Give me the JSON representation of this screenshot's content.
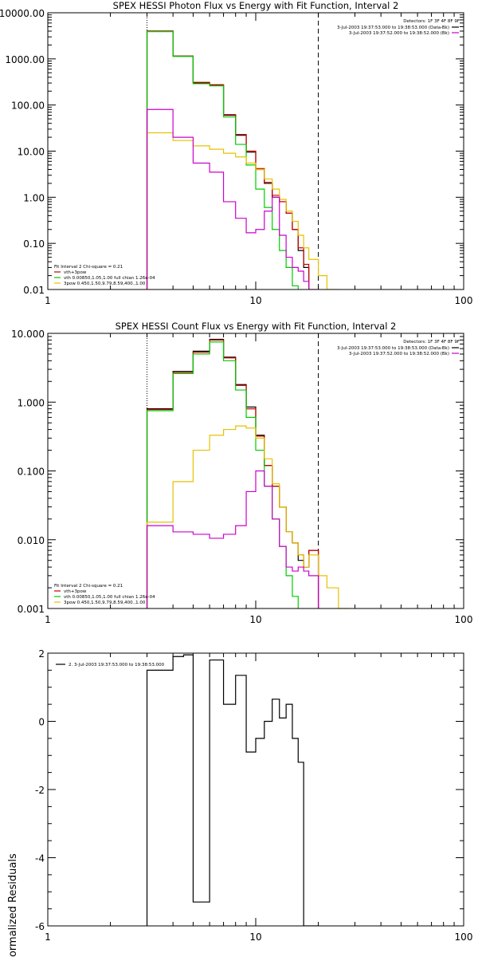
{
  "chart_data": [
    {
      "type": "line",
      "step": true,
      "title": "SPEX HESSI Photon Flux vs Energy with Fit Function, Interval 2",
      "x_scale": "log",
      "y_scale": "log",
      "xlim": [
        1,
        100
      ],
      "ylim": [
        0.01,
        10000
      ],
      "x_tick_labels": [
        "1",
        "10",
        "100"
      ],
      "y_tick_labels": [
        "0.01",
        "0.10",
        "1.00",
        "10.00",
        "100.00",
        "1000.00",
        "10000.00"
      ],
      "detectors_label": "Detectors: 1F 3F 4F 8F 9F",
      "legend_top_right": [
        {
          "text": "3-Jul-2003 19:37:53.000 to 19:38:53.000 (Data-Bk)",
          "color": "#000000"
        },
        {
          "text": "3-Jul-2003 19:37:52.000 to 19:38:52.000 (Bk)",
          "color": "#cc00cc"
        }
      ],
      "legend_bottom_left": [
        {
          "text": "Fit Interval 2   Chi-square = 0.21",
          "color": "#000000"
        },
        {
          "text": "vth+3pow",
          "color": "#cc0000"
        },
        {
          "text": "vth 0.00850,1.05,1.00  full chian 1.26e-04",
          "color": "#00cc00"
        },
        {
          "text": "3pow 0.450,1.50,9.79,8.59,400.,1.00",
          "color": "#e6c200"
        }
      ],
      "vlines": [
        {
          "x": 3.0,
          "style": "dotted"
        },
        {
          "x": 20.0,
          "style": "dashed"
        }
      ],
      "edges": [
        3,
        4,
        5,
        6,
        7,
        8,
        9,
        10,
        11,
        12,
        13,
        14,
        15,
        16,
        17,
        18,
        20,
        22,
        25,
        28
      ],
      "series": [
        {
          "name": "Data-Bk",
          "color": "#000000",
          "values": [
            4000,
            1150,
            300,
            270,
            60,
            22,
            9.5,
            4.0,
            2.0,
            1.0,
            0.8,
            0.45,
            0.2,
            0.07,
            0.03
          ]
        },
        {
          "name": "vth+3pow",
          "color": "#cc0000",
          "values": [
            4000,
            1150,
            310,
            275,
            62,
            23,
            10,
            4.2,
            2.1,
            1.1,
            0.8,
            0.45,
            0.2,
            0.08,
            0.035
          ]
        },
        {
          "name": "vth",
          "color": "#00cc00",
          "values": [
            3900,
            1130,
            290,
            260,
            55,
            14,
            5.0,
            1.5,
            0.6,
            0.2,
            0.07,
            0.03,
            0.012,
            0.005
          ]
        },
        {
          "name": "3pow",
          "color": "#e6c200",
          "values": [
            25,
            17,
            13,
            11,
            9,
            7.5,
            5.5,
            4.0,
            2.5,
            1.5,
            0.9,
            0.5,
            0.3,
            0.15,
            0.08,
            0.045,
            0.02,
            0.01,
            0.005
          ]
        },
        {
          "name": "Bk",
          "color": "#cc00cc",
          "values": [
            80,
            20,
            5.5,
            3.5,
            0.8,
            0.35,
            0.17,
            0.2,
            0.5,
            1.0,
            0.15,
            0.05,
            0.03,
            0.025,
            0.015,
            0.01
          ]
        }
      ]
    },
    {
      "type": "line",
      "step": true,
      "title": "SPEX HESSI Count Flux vs Energy with Fit Function, Interval 2",
      "x_scale": "log",
      "y_scale": "log",
      "xlim": [
        1,
        100
      ],
      "ylim": [
        0.001,
        10
      ],
      "x_tick_labels": [
        "1",
        "10",
        "100"
      ],
      "y_tick_labels": [
        "0.001",
        "0.010",
        "0.100",
        "1.000",
        "10.000"
      ],
      "detectors_label": "Detectors: 1F 3F 4F 8F 9F",
      "legend_top_right": [
        {
          "text": "3-Jul-2003 19:37:53.000 to 19:38:53.000 (Data-Bk)",
          "color": "#000000"
        },
        {
          "text": "3-Jul-2003 19:37:52.000 to 19:38:52.000 (Bk)",
          "color": "#cc00cc"
        }
      ],
      "legend_bottom_left": [
        {
          "text": "Fit Interval 2   Chi-square = 0.21",
          "color": "#000000"
        },
        {
          "text": "vth+3pow",
          "color": "#cc0000"
        },
        {
          "text": "vth 0.00850,1.05,1.00  full chian 1.26e-04",
          "color": "#00cc00"
        },
        {
          "text": "3pow 0.450,1.50,9.79,8.59,400.,1.00",
          "color": "#e6c200"
        }
      ],
      "vlines": [
        {
          "x": 3.0,
          "style": "dotted"
        },
        {
          "x": 20.0,
          "style": "dashed"
        }
      ],
      "edges": [
        3,
        4,
        5,
        6,
        7,
        8,
        9,
        10,
        11,
        12,
        13,
        14,
        15,
        16,
        17,
        18,
        20,
        22,
        25,
        28
      ],
      "series": [
        {
          "name": "Data-Bk",
          "color": "#000000",
          "values": [
            0.8,
            2.8,
            5.5,
            8.2,
            4.5,
            1.8,
            0.85,
            0.33,
            0.12,
            0.06,
            0.03,
            0.013,
            0.009,
            0.005,
            0.004,
            0.007
          ]
        },
        {
          "name": "vth+3pow",
          "color": "#cc0000",
          "values": [
            0.78,
            2.7,
            5.3,
            8.0,
            4.4,
            1.75,
            0.8,
            0.32,
            0.12,
            0.06,
            0.03,
            0.013,
            0.009,
            0.006,
            0.004,
            0.007
          ]
        },
        {
          "name": "vth",
          "color": "#00cc00",
          "values": [
            0.75,
            2.6,
            5.0,
            7.5,
            4.0,
            1.5,
            0.6,
            0.2,
            0.06,
            0.02,
            0.008,
            0.003,
            0.0015,
            0.0008
          ]
        },
        {
          "name": "3pow",
          "color": "#e6c200",
          "values": [
            0.018,
            0.07,
            0.2,
            0.33,
            0.4,
            0.45,
            0.42,
            0.3,
            0.15,
            0.065,
            0.03,
            0.013,
            0.009,
            0.006,
            0.004,
            0.006,
            0.003,
            0.002,
            0.001
          ]
        },
        {
          "name": "Bk",
          "color": "#cc00cc",
          "values": [
            0.016,
            0.013,
            0.012,
            0.0105,
            0.012,
            0.016,
            0.05,
            0.1,
            0.06,
            0.02,
            0.008,
            0.004,
            0.0035,
            0.004,
            0.0035,
            0.003
          ]
        }
      ]
    },
    {
      "type": "line",
      "step": true,
      "title": "",
      "x_scale": "log",
      "y_scale": "linear",
      "xlim": [
        1,
        100
      ],
      "ylim": [
        -6,
        2
      ],
      "x_tick_labels": [
        "1",
        "10",
        "100"
      ],
      "y_tick_labels": [
        "-6",
        "-4",
        "-2",
        "0",
        "2"
      ],
      "ylabel": "Normalized Residuals",
      "legend_top_left": [
        {
          "text": "2. 3-Jul-2003 19:37:53.000 to 19:38:53.000",
          "color": "#000000"
        }
      ],
      "edges": [
        3,
        4,
        4.5,
        5,
        6,
        7,
        8,
        9,
        10,
        11,
        12,
        13,
        14,
        15,
        16,
        17,
        18,
        20
      ],
      "series": [
        {
          "name": "2. 3-Jul-2003 19:37:53.000 to 19:38:53.000",
          "color": "#000000",
          "values": [
            1.5,
            1.9,
            1.95,
            -5.3,
            1.8,
            0.5,
            1.35,
            -0.9,
            -0.5,
            0.0,
            0.65,
            0.1,
            0.5,
            -0.5,
            -1.2,
            -6.0,
            -6.0
          ]
        }
      ]
    }
  ]
}
